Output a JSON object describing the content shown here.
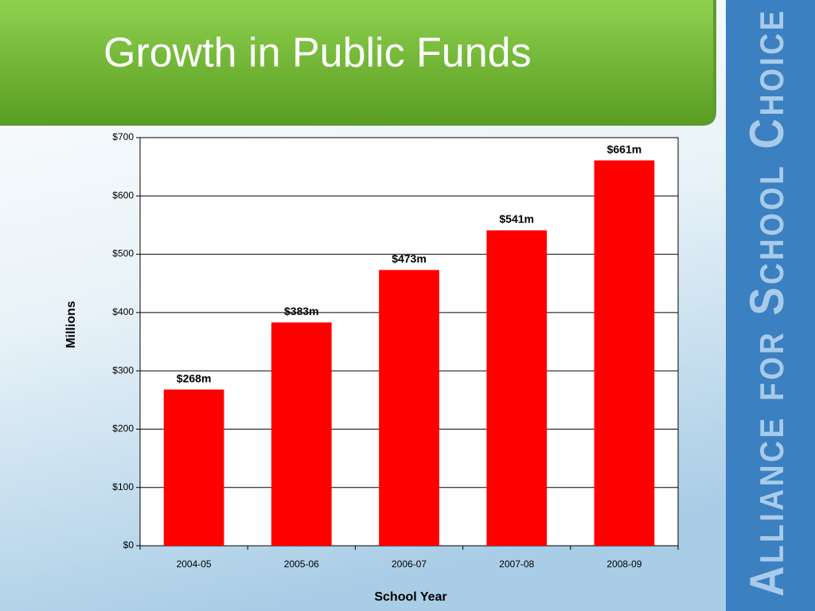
{
  "chart_data": {
    "type": "bar",
    "title": "Growth in Public Funds",
    "categories": [
      "2004-05",
      "2005-06",
      "2006-07",
      "2007-08",
      "2008-09"
    ],
    "values": [
      268,
      383,
      473,
      541,
      661
    ],
    "value_labels": [
      "$268m",
      "$383m",
      "$473m",
      "$541m",
      "$661m"
    ],
    "color": "#ff0000",
    "ylim": [
      0,
      700
    ],
    "yticks": [
      {
        "value": 0,
        "label": "$0"
      },
      {
        "value": 100,
        "label": "$100"
      },
      {
        "value": 200,
        "label": "$200"
      },
      {
        "value": 300,
        "label": "$300"
      },
      {
        "value": 400,
        "label": "$400"
      },
      {
        "value": 500,
        "label": "$500"
      },
      {
        "value": 600,
        "label": "$600"
      },
      {
        "value": 700,
        "label": "$700"
      }
    ],
    "y_label": "Millions",
    "x_label": "School Year",
    "grid": true
  },
  "brand": "Alliance for School Choice"
}
